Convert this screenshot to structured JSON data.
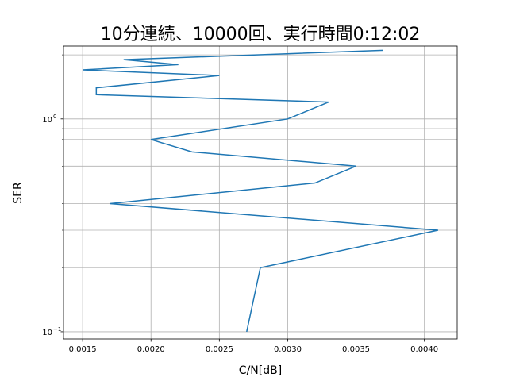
{
  "chart_data": {
    "type": "line",
    "title": "10分連続、10000回、実行時間0:12:02",
    "xlabel": "C/N[dB]",
    "ylabel": "SER",
    "xlim": [
      0.00136,
      0.00424
    ],
    "ylim": [
      0.0925,
      2.2
    ],
    "yscale": "log",
    "grid": true,
    "line_color": "#1f77b4",
    "x_ticks": [
      "0.0015",
      "0.0020",
      "0.0025",
      "0.0030",
      "0.0035",
      "0.0040"
    ],
    "y_ticks": [
      {
        "base": "10",
        "exp": "−1",
        "value": 0.1
      },
      {
        "base": "10",
        "exp": "0",
        "value": 1
      }
    ],
    "series": [
      {
        "points": [
          [
            0.0027,
            0.1
          ],
          [
            0.0027,
            0.1
          ],
          [
            0.0028,
            0.2
          ],
          [
            0.0041,
            0.3
          ],
          [
            0.0017,
            0.4
          ],
          [
            0.0032,
            0.5
          ],
          [
            0.0035,
            0.6
          ],
          [
            0.0023,
            0.7
          ],
          [
            0.002,
            0.8
          ],
          [
            0.003,
            1.0
          ],
          [
            0.0033,
            1.2
          ],
          [
            0.0016,
            1.3
          ],
          [
            0.0016,
            1.4
          ],
          [
            0.0025,
            1.6
          ],
          [
            0.0015,
            1.7
          ],
          [
            0.0022,
            1.8
          ],
          [
            0.0018,
            1.9
          ],
          [
            0.0037,
            2.1
          ]
        ]
      }
    ]
  }
}
